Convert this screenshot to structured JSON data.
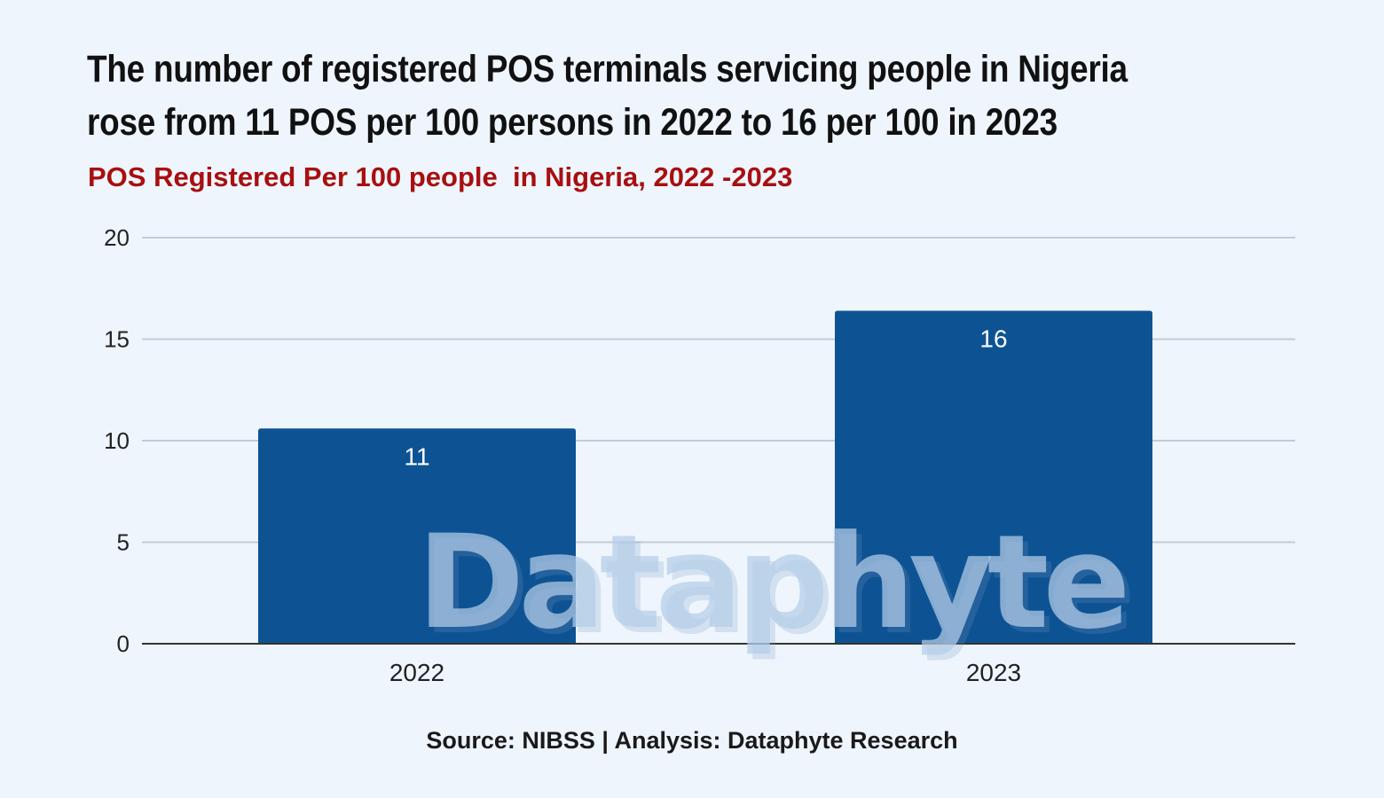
{
  "header": {
    "title_line1": "The number of registered POS terminals servicing people in Nigeria",
    "title_line2": "rose from 11 POS per 100 persons in 2022 to 16 per 100 in 2023",
    "subtitle": "POS Registered Per 100 people  in Nigeria, 2022 -2023"
  },
  "footer": {
    "source": "Source: NIBSS | Analysis: Dataphyte Research"
  },
  "watermark": "Dataphyte",
  "colors": {
    "background": "#eef5fd",
    "bar": "#0d5394",
    "title": "#111111",
    "subtitle": "#a80f0f",
    "grid": "#c3cbd4",
    "axis": "#333333",
    "bar_label": "#ffffff",
    "tick_label": "#222222"
  },
  "chart_data": {
    "type": "bar",
    "title": "POS Registered Per 100 people  in Nigeria, 2022 -2023",
    "categories": [
      "2022",
      "2023"
    ],
    "values": [
      10.6,
      16.4
    ],
    "data_labels": [
      "11",
      "16"
    ],
    "xlabel": "",
    "ylabel": "",
    "ylim": [
      0,
      20
    ],
    "yticks": [
      0,
      5,
      10,
      15,
      20
    ],
    "grid": true,
    "legend": "none"
  }
}
